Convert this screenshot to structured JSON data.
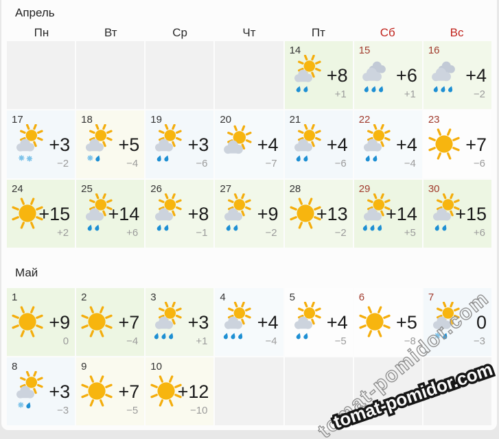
{
  "watermark": {
    "text": "tomat-pomidor.com"
  },
  "colors": {
    "page_bg": "#e8e8e8",
    "card_bg": "#fcfcfc",
    "header_weekend_red": "#c0231c",
    "date_weekend_red": "#a03a2c",
    "temp_day": "#1a1a1a",
    "temp_night": "#9b9b9b",
    "sun_yellow": "#f7b50f",
    "cloud_gray": "#ccd3dd",
    "rain_blue": "#1e8fd3",
    "snow_blue": "#7cc2e9",
    "palette": {
      "gray": "#f1f1f1",
      "green": "#edf6e3",
      "green2": "#f2f8ea",
      "blue": "#f3f8fb",
      "blue2": "#f6fafc",
      "cream": "#fafaef",
      "white": "#fdfdfd"
    }
  },
  "months": [
    {
      "title": "Апрель",
      "weekdays": [
        {
          "label": "Пн",
          "weekend": false
        },
        {
          "label": "Вт",
          "weekend": false
        },
        {
          "label": "Ср",
          "weekend": false
        },
        {
          "label": "Чт",
          "weekend": false
        },
        {
          "label": "Пт",
          "weekend": false
        },
        {
          "label": "Сб",
          "weekend": true
        },
        {
          "label": "Вс",
          "weekend": true
        }
      ],
      "rows": [
        {
          "cells": [
            {
              "empty": true
            },
            {
              "empty": true
            },
            {
              "empty": true
            },
            {
              "empty": true
            },
            {
              "day": "14",
              "icon": "sun-cloud-rain",
              "temp_day": "+8",
              "temp_night": "+1",
              "bg": "green",
              "weekend": false
            },
            {
              "day": "15",
              "icon": "cloud-rain-heavy",
              "temp_day": "+6",
              "temp_night": "+1",
              "bg": "green2",
              "weekend": true
            },
            {
              "day": "16",
              "icon": "cloud-rain-heavy",
              "temp_day": "+4",
              "temp_night": "−2",
              "bg": "green2",
              "weekend": true
            }
          ]
        },
        {
          "cells": [
            {
              "day": "17",
              "icon": "sun-cloud-snow",
              "temp_day": "+3",
              "temp_night": "−2",
              "bg": "blue",
              "weekend": false
            },
            {
              "day": "18",
              "icon": "sun-cloud-sleet",
              "temp_day": "+5",
              "temp_night": "−4",
              "bg": "cream",
              "weekend": false
            },
            {
              "day": "19",
              "icon": "sun-cloud-rain",
              "temp_day": "+3",
              "temp_night": "−6",
              "bg": "blue",
              "weekend": false
            },
            {
              "day": "20",
              "icon": "sun-cloud",
              "temp_day": "+4",
              "temp_night": "−7",
              "bg": "blue2",
              "weekend": false
            },
            {
              "day": "21",
              "icon": "sun-cloud-rain",
              "temp_day": "+4",
              "temp_night": "−6",
              "bg": "blue",
              "weekend": false
            },
            {
              "day": "22",
              "icon": "sun-cloud-rain",
              "temp_day": "+4",
              "temp_night": "−4",
              "bg": "blue2",
              "weekend": true
            },
            {
              "day": "23",
              "icon": "sun",
              "temp_day": "+7",
              "temp_night": "−6",
              "bg": "white",
              "weekend": true
            }
          ]
        },
        {
          "cells": [
            {
              "day": "24",
              "icon": "sun",
              "temp_day": "+15",
              "temp_night": "+2",
              "bg": "green",
              "weekend": false
            },
            {
              "day": "25",
              "icon": "sun-cloud-rain",
              "temp_day": "+14",
              "temp_night": "+6",
              "bg": "green",
              "weekend": false
            },
            {
              "day": "26",
              "icon": "sun-cloud-rain",
              "temp_day": "+8",
              "temp_night": "−1",
              "bg": "green2",
              "weekend": false
            },
            {
              "day": "27",
              "icon": "sun-cloud-rain",
              "temp_day": "+9",
              "temp_night": "−2",
              "bg": "green2",
              "weekend": false
            },
            {
              "day": "28",
              "icon": "sun",
              "temp_day": "+13",
              "temp_night": "−2",
              "bg": "green2",
              "weekend": false
            },
            {
              "day": "29",
              "icon": "sun-cloud-rain-heavy",
              "temp_day": "+14",
              "temp_night": "+5",
              "bg": "green",
              "weekend": true
            },
            {
              "day": "30",
              "icon": "sun-cloud-rain",
              "temp_day": "+15",
              "temp_night": "+6",
              "bg": "green",
              "weekend": true
            }
          ]
        }
      ]
    },
    {
      "title": "Май",
      "rows": [
        {
          "cells": [
            {
              "day": "1",
              "icon": "sun",
              "temp_day": "+9",
              "temp_night": "0",
              "bg": "green",
              "weekend": false
            },
            {
              "day": "2",
              "icon": "sun",
              "temp_day": "+7",
              "temp_night": "−4",
              "bg": "green",
              "weekend": false
            },
            {
              "day": "3",
              "icon": "sun-cloud-rain-heavy",
              "temp_day": "+3",
              "temp_night": "+1",
              "bg": "green2",
              "weekend": false
            },
            {
              "day": "4",
              "icon": "sun-cloud-rain-heavy",
              "temp_day": "+4",
              "temp_night": "−4",
              "bg": "blue2",
              "weekend": false
            },
            {
              "day": "5",
              "icon": "sun-cloud-rain",
              "temp_day": "+4",
              "temp_night": "−5",
              "bg": "white",
              "weekend": false
            },
            {
              "day": "6",
              "icon": "sun",
              "temp_day": "+5",
              "temp_night": "−8",
              "bg": "white",
              "weekend": true
            },
            {
              "day": "7",
              "icon": "sun-cloud-sleet",
              "temp_day": "0",
              "temp_night": "−3",
              "bg": "blue",
              "weekend": true
            }
          ]
        },
        {
          "cells": [
            {
              "day": "8",
              "icon": "sun-cloud-sleet",
              "temp_day": "+3",
              "temp_night": "−3",
              "bg": "blue",
              "weekend": false
            },
            {
              "day": "9",
              "icon": "sun",
              "temp_day": "+7",
              "temp_night": "−5",
              "bg": "cream",
              "weekend": false
            },
            {
              "day": "10",
              "icon": "sun",
              "temp_day": "+12",
              "temp_night": "−10",
              "bg": "cream",
              "weekend": false
            },
            {
              "empty": true
            },
            {
              "empty": true
            },
            {
              "empty": true
            },
            {
              "empty": true
            }
          ]
        }
      ]
    }
  ]
}
